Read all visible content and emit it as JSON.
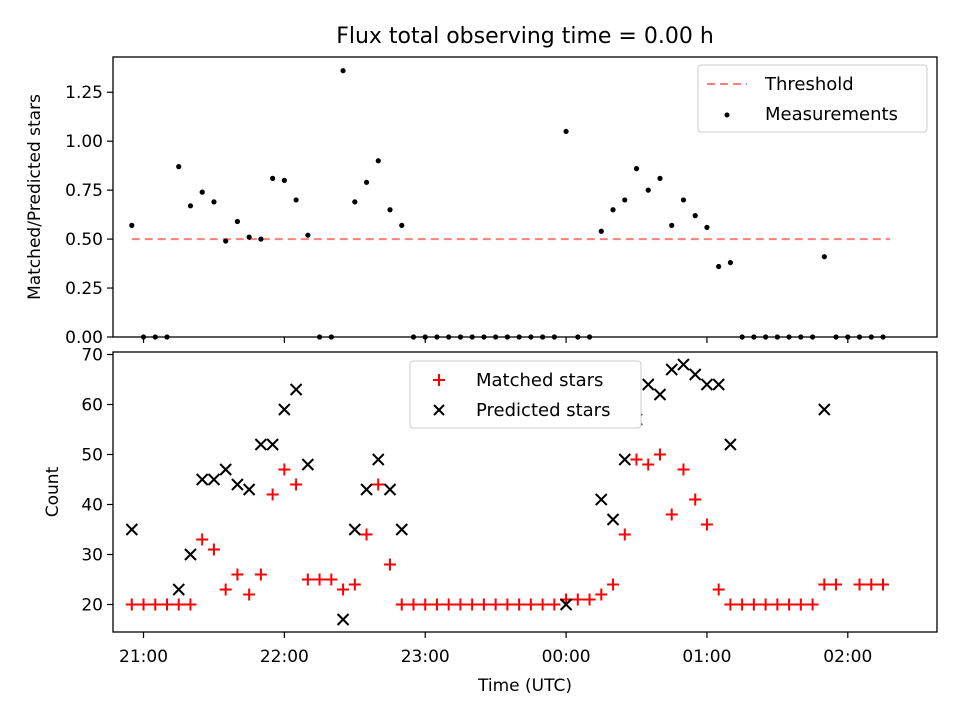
{
  "figure": {
    "title": "Flux total observing time = 0.00 h"
  },
  "chart_data": [
    {
      "type": "scatter",
      "title": "Flux total observing time = 0.00 h",
      "xlabel": "",
      "ylabel": "Matched/Predicted stars",
      "xlim": [
        "20:47",
        "02:38"
      ],
      "ylim": [
        0,
        1.43
      ],
      "yticks": [
        "0.00",
        "0.25",
        "0.50",
        "0.75",
        "1.00",
        "1.25"
      ],
      "grid": false,
      "legend": {
        "placement": "top-right",
        "entries": [
          "Threshold",
          "Measurements"
        ]
      },
      "threshold": {
        "name": "Threshold",
        "value": 0.5,
        "x_start": "20:55",
        "x_end": "02:18",
        "color": "#ff7f7f",
        "style": "dashed"
      },
      "series": [
        {
          "name": "Measurements",
          "color": "#000000",
          "marker": "dot",
          "x": [
            "20:55",
            "21:00",
            "21:05",
            "21:10",
            "21:15",
            "21:20",
            "21:25",
            "21:30",
            "21:35",
            "21:40",
            "21:45",
            "21:50",
            "21:55",
            "22:00",
            "22:05",
            "22:10",
            "22:15",
            "22:20",
            "22:25",
            "22:30",
            "22:35",
            "22:40",
            "22:45",
            "22:50",
            "22:55",
            "23:00",
            "23:05",
            "23:10",
            "23:15",
            "23:20",
            "23:25",
            "23:30",
            "23:35",
            "23:40",
            "23:45",
            "23:50",
            "23:55",
            "00:00",
            "00:05",
            "00:10",
            "00:15",
            "00:20",
            "00:25",
            "00:30",
            "00:35",
            "00:40",
            "00:45",
            "00:50",
            "00:55",
            "01:00",
            "01:05",
            "01:10",
            "01:15",
            "01:20",
            "01:25",
            "01:30",
            "01:35",
            "01:40",
            "01:45",
            "01:50",
            "01:55",
            "02:00",
            "02:05",
            "02:10",
            "02:15"
          ],
          "y": [
            0.57,
            0,
            0,
            0,
            0.87,
            0.67,
            0.74,
            0.69,
            0.49,
            0.59,
            0.51,
            0.5,
            0.81,
            0.8,
            0.7,
            0.52,
            0,
            0,
            1.36,
            0.69,
            0.79,
            0.9,
            0.65,
            0.57,
            0,
            0,
            0,
            0,
            0,
            0,
            0,
            0,
            0,
            0,
            0,
            0,
            0,
            1.05,
            0,
            0,
            0.54,
            0.65,
            0.7,
            0.86,
            0.75,
            0.81,
            0.57,
            0.7,
            0.62,
            0.56,
            0.36,
            0.38,
            0,
            0,
            0,
            0,
            0,
            0,
            0,
            0.41,
            0,
            0,
            0,
            0,
            0
          ]
        }
      ]
    },
    {
      "type": "scatter",
      "xlabel": "Time (UTC)",
      "ylabel": "Count",
      "xlim": [
        "20:47",
        "02:38"
      ],
      "ylim": [
        14.5,
        70.5
      ],
      "xticks": [
        "21:00",
        "22:00",
        "23:00",
        "00:00",
        "01:00",
        "02:00"
      ],
      "yticks": [
        "20",
        "30",
        "40",
        "50",
        "60",
        "70"
      ],
      "grid": false,
      "legend": {
        "placement": "top-center",
        "entries": [
          "Matched stars",
          "Predicted stars"
        ]
      },
      "x": [
        "20:55",
        "21:00",
        "21:05",
        "21:10",
        "21:15",
        "21:20",
        "21:25",
        "21:30",
        "21:35",
        "21:40",
        "21:45",
        "21:50",
        "21:55",
        "22:00",
        "22:05",
        "22:10",
        "22:15",
        "22:20",
        "22:25",
        "22:30",
        "22:35",
        "22:40",
        "22:45",
        "22:50",
        "22:55",
        "23:00",
        "23:05",
        "23:10",
        "23:15",
        "23:20",
        "23:25",
        "23:30",
        "23:35",
        "23:40",
        "23:45",
        "23:50",
        "23:55",
        "00:00",
        "00:05",
        "00:10",
        "00:15",
        "00:20",
        "00:25",
        "00:30",
        "00:35",
        "00:40",
        "00:45",
        "00:50",
        "00:55",
        "01:00",
        "01:05",
        "01:10",
        "01:15",
        "01:20",
        "01:25",
        "01:30",
        "01:35",
        "01:40",
        "01:45",
        "01:50",
        "01:55",
        "02:00",
        "02:05",
        "02:10",
        "02:15"
      ],
      "series": [
        {
          "name": "Matched stars",
          "color": "#ff0000",
          "marker": "plus",
          "y": [
            20,
            20,
            20,
            20,
            20,
            20,
            33,
            31,
            23,
            26,
            22,
            26,
            42,
            47,
            44,
            25,
            25,
            25,
            23,
            24,
            34,
            44,
            28,
            20,
            20,
            20,
            20,
            20,
            20,
            20,
            20,
            20,
            20,
            20,
            20,
            20,
            20,
            21,
            21,
            21,
            22,
            24,
            34,
            49,
            48,
            50,
            38,
            47,
            41,
            36,
            23,
            20,
            20,
            20,
            20,
            20,
            20,
            20,
            20,
            24,
            24,
            null,
            24,
            24,
            24
          ]
        },
        {
          "name": "Predicted stars",
          "color": "#000000",
          "marker": "x",
          "y": [
            35,
            null,
            null,
            null,
            23,
            30,
            45,
            45,
            47,
            44,
            43,
            52,
            52,
            59,
            63,
            48,
            null,
            null,
            17,
            35,
            43,
            49,
            43,
            35,
            null,
            null,
            null,
            null,
            null,
            null,
            null,
            null,
            null,
            null,
            null,
            null,
            null,
            20,
            null,
            null,
            41,
            37,
            49,
            57,
            64,
            62,
            67,
            68,
            66,
            64,
            64,
            52,
            null,
            null,
            null,
            null,
            null,
            null,
            null,
            59,
            null,
            null,
            null,
            null,
            null
          ]
        }
      ]
    }
  ]
}
